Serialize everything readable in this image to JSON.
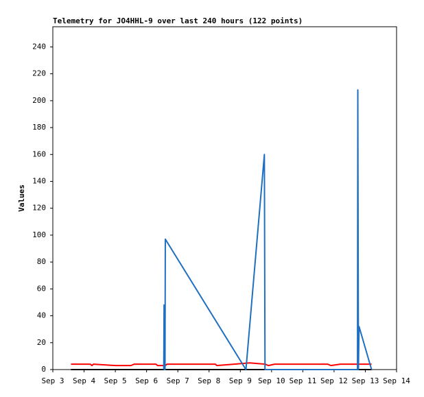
{
  "chart_data": {
    "type": "line",
    "title": "Telemetry for JO4HHL-9 over last 240 hours (122 points)",
    "y_label": "Values",
    "xlim": [
      3,
      14
    ],
    "xticks": [
      {
        "value": 3,
        "label": "Sep 3"
      },
      {
        "value": 4,
        "label": "Sep 4"
      },
      {
        "value": 5,
        "label": "Sep 5"
      },
      {
        "value": 6,
        "label": "Sep 6"
      },
      {
        "value": 7,
        "label": "Sep 7"
      },
      {
        "value": 8,
        "label": "Sep 8"
      },
      {
        "value": 9,
        "label": "Sep 9"
      },
      {
        "value": 10,
        "label": "Sep 10"
      },
      {
        "value": 11,
        "label": "Sep 11"
      },
      {
        "value": 12,
        "label": "Sep 12"
      },
      {
        "value": 13,
        "label": "Sep 13"
      },
      {
        "value": 14,
        "label": "Sep 14"
      }
    ],
    "ylim": [
      0,
      255
    ],
    "yticks": [
      0,
      20,
      40,
      60,
      80,
      100,
      120,
      140,
      160,
      180,
      200,
      220,
      240
    ],
    "grid": false,
    "series": [
      {
        "color": "#000000",
        "x": [
          3.58,
          13.2
        ],
        "values": [
          0,
          0
        ]
      },
      {
        "color": "#ff0000",
        "x": [
          3.58,
          4.2,
          4.25,
          4.3,
          5.0,
          5.5,
          5.6,
          6.3,
          6.35,
          6.6,
          6.65,
          8.2,
          8.25,
          8.8,
          9.3,
          9.8,
          9.9,
          10.1,
          11.8,
          11.9,
          12.2,
          13.2
        ],
        "values": [
          4,
          4,
          3,
          4,
          3,
          3,
          4,
          4,
          3,
          3,
          4,
          4,
          3,
          4,
          5,
          4,
          3,
          4,
          4,
          3,
          4,
          4
        ]
      },
      {
        "color": "#1f6fc0",
        "x": [
          6.55,
          6.56,
          6.57,
          6.59,
          6.6,
          9.18,
          9.77,
          9.79,
          12.75,
          12.76,
          12.78,
          12.8,
          13.2
        ],
        "values": [
          0,
          48,
          0,
          0,
          97,
          0,
          160,
          0,
          0,
          208,
          0,
          32,
          0
        ]
      }
    ]
  }
}
